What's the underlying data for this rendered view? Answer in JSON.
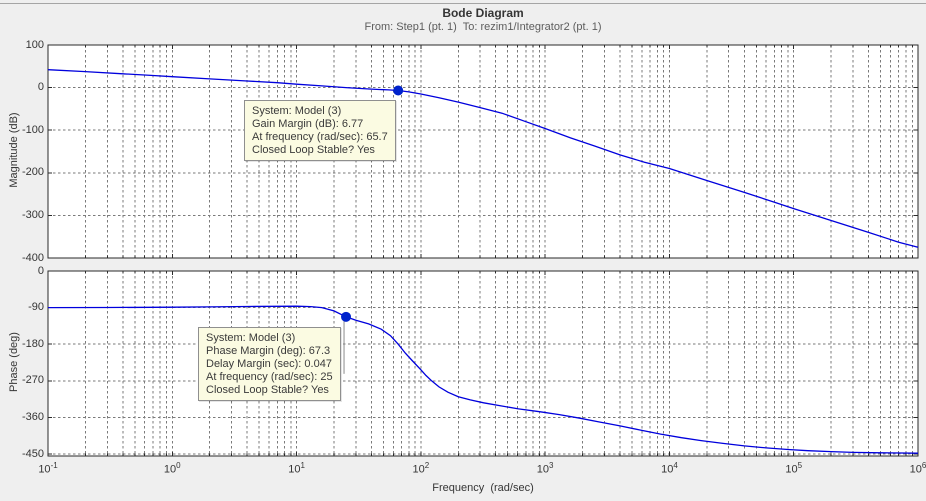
{
  "figure": {
    "title": "Bode Diagram",
    "subtitle": "From: Step1 (pt. 1)  To: rezim1/Integrator2 (pt. 1)",
    "xlabel": "Frequency  (rad/sec)"
  },
  "colors": {
    "figure_bg": "#efefef",
    "plot_bg": "#ffffff",
    "curve": "#0000dd",
    "marker": "#0022cc",
    "grid": "#7a7a7a",
    "frame": "#2a2a2a",
    "tooltip_bg": "#fbfbe2",
    "tooltip_border": "#8f8f8f",
    "dropline": "#8a8a8a",
    "text": "#3b3b3b"
  },
  "chart_data": [
    {
      "type": "line",
      "name": "magnitude-plot",
      "title": "Bode Diagram",
      "ylabel": "Magnitude (dB)",
      "x_scale": "log",
      "xlim": [
        0.1,
        1000000
      ],
      "ylim": [
        -400,
        100
      ],
      "yticks": [
        100,
        0,
        -100,
        -200,
        -300,
        -400
      ],
      "xticks": [
        0.1,
        1,
        10,
        100,
        1000,
        10000,
        100000,
        1000000
      ],
      "grid": true,
      "series": [
        {
          "name": "Model (3)",
          "points": [
            [
              0.1,
              42
            ],
            [
              0.2,
              37.5
            ],
            [
              0.4,
              32.5
            ],
            [
              0.7,
              28.5
            ],
            [
              1,
              25.5
            ],
            [
              2,
              20.5
            ],
            [
              4,
              15.5
            ],
            [
              7,
              11.5
            ],
            [
              10,
              8
            ],
            [
              16,
              4
            ],
            [
              25,
              0
            ],
            [
              40,
              -3.5
            ],
            [
              55,
              -5.5
            ],
            [
              65.7,
              -6.8
            ],
            [
              80,
              -10
            ],
            [
              100,
              -15
            ],
            [
              140,
              -24
            ],
            [
              200,
              -34
            ],
            [
              300,
              -47
            ],
            [
              450,
              -60
            ],
            [
              700,
              -80
            ],
            [
              1000,
              -96
            ],
            [
              1600,
              -118
            ],
            [
              2500,
              -137
            ],
            [
              4000,
              -158
            ],
            [
              6300,
              -175
            ],
            [
              10000,
              -190
            ],
            [
              20000,
              -218
            ],
            [
              40000,
              -246
            ],
            [
              70000,
              -269
            ],
            [
              100000,
              -284
            ],
            [
              200000,
              -312
            ],
            [
              400000,
              -340
            ],
            [
              700000,
              -363
            ],
            [
              1000000,
              -375
            ]
          ]
        }
      ],
      "marker_point": {
        "freq": 65.7,
        "value": -6.8,
        "meaning": "gain margin point"
      }
    },
    {
      "type": "line",
      "name": "phase-plot",
      "title": "Bode Diagram",
      "ylabel": "Phase (deg)",
      "x_scale": "log",
      "xlim": [
        0.1,
        1000000
      ],
      "ylim": [
        -450,
        0
      ],
      "yticks": [
        0,
        -90,
        -180,
        -270,
        -360,
        -450
      ],
      "xticks": [
        0.1,
        1,
        10,
        100,
        1000,
        10000,
        100000,
        1000000
      ],
      "grid": true,
      "series": [
        {
          "name": "Model (3)",
          "points": [
            [
              0.1,
              -90
            ],
            [
              0.3,
              -89.7
            ],
            [
              0.7,
              -89.2
            ],
            [
              1,
              -89
            ],
            [
              2,
              -88.2
            ],
            [
              4,
              -87.3
            ],
            [
              7,
              -86.7
            ],
            [
              10,
              -86.5
            ],
            [
              13,
              -87.5
            ],
            [
              16,
              -90
            ],
            [
              20,
              -98
            ],
            [
              25,
              -112.7
            ],
            [
              30,
              -121
            ],
            [
              38,
              -130
            ],
            [
              48,
              -143
            ],
            [
              57,
              -159
            ],
            [
              65.7,
              -180
            ],
            [
              75,
              -202
            ],
            [
              85,
              -220
            ],
            [
              100,
              -243
            ],
            [
              110,
              -257
            ],
            [
              122,
              -270
            ],
            [
              140,
              -285
            ],
            [
              165,
              -298
            ],
            [
              200,
              -309
            ],
            [
              250,
              -317
            ],
            [
              320,
              -324
            ],
            [
              430,
              -331
            ],
            [
              610,
              -339
            ],
            [
              900,
              -346
            ],
            [
              1300,
              -353
            ],
            [
              1900,
              -362
            ],
            [
              2700,
              -371
            ],
            [
              4000,
              -381
            ],
            [
              5800,
              -391
            ],
            [
              8500,
              -401
            ],
            [
              12500,
              -410
            ],
            [
              18000,
              -417
            ],
            [
              27000,
              -424
            ],
            [
              40000,
              -430
            ],
            [
              60000,
              -435
            ],
            [
              90000,
              -439
            ],
            [
              130000,
              -442
            ],
            [
              200000,
              -444
            ],
            [
              300000,
              -446
            ],
            [
              500000,
              -447
            ],
            [
              1000000,
              -448
            ]
          ]
        }
      ],
      "marker_point": {
        "freq": 25,
        "value": -112.7,
        "meaning": "phase margin point"
      }
    }
  ],
  "datatips": [
    {
      "lines": [
        "System: Model (3)",
        "Gain Margin (dB): 6.77",
        "At frequency (rad/sec): 65.7",
        "Closed Loop Stable? Yes"
      ]
    },
    {
      "lines": [
        "System: Model (3)",
        "Phase Margin (deg): 67.3",
        "Delay Margin (sec): 0.047",
        "At frequency (rad/sec): 25",
        "Closed Loop Stable? Yes"
      ]
    }
  ]
}
